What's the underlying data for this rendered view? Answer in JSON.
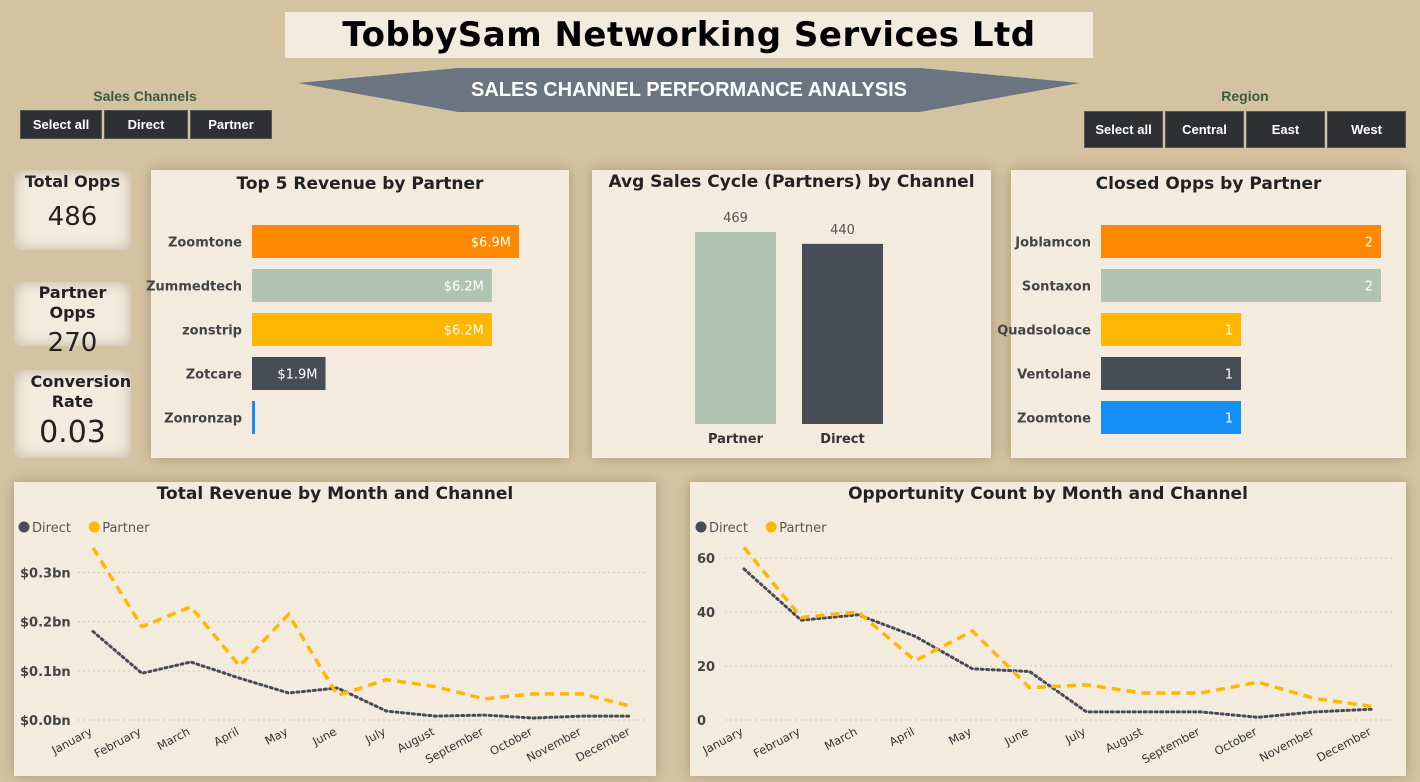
{
  "header": {
    "title": "TobbySam Networking Services Ltd",
    "subtitle": "SALES CHANNEL PERFORMANCE ANALYSIS"
  },
  "slicers": {
    "channels": {
      "title": "Sales Channels",
      "buttons": [
        "Select all",
        "Direct",
        "Partner"
      ]
    },
    "region": {
      "title": "Region",
      "buttons": [
        "Select all",
        "Central",
        "East",
        "West"
      ]
    }
  },
  "kpis": [
    {
      "label": "Total Opps",
      "value": "486"
    },
    {
      "label": "Partner Opps",
      "value": "270"
    },
    {
      "label": "Conversion Rate",
      "value": "0.03"
    }
  ],
  "colors": {
    "orange": "#ff8800",
    "sage": "#b0c4b1",
    "yellow": "#ffb703",
    "dark": "#474c56",
    "blue": "#168ef7"
  },
  "chart_data": [
    {
      "type": "bar",
      "orientation": "horizontal",
      "title": "Top 5 Revenue by Partner",
      "categories": [
        "Zoomtone",
        "Zummedtech",
        "zonstrip",
        "Zotcare",
        "Zonronzap"
      ],
      "values": [
        6.9,
        6.2,
        6.2,
        1.9,
        0.05
      ],
      "labels": [
        "$6.9M",
        "$6.2M",
        "$6.2M",
        "$1.9M",
        ""
      ],
      "bar_colors": [
        "#ff8800",
        "#b0c4b1",
        "#ffb703",
        "#474c56",
        "#168ef7"
      ],
      "unit": "$M"
    },
    {
      "type": "bar",
      "orientation": "vertical",
      "title": "Avg Sales Cycle (Partners) by Channel",
      "categories": [
        "Partner",
        "Direct"
      ],
      "values": [
        469,
        440
      ],
      "labels": [
        "469",
        "440"
      ],
      "bar_colors": [
        "#b0c4b1",
        "#474c56"
      ]
    },
    {
      "type": "bar",
      "orientation": "horizontal",
      "title": "Closed Opps by Partner",
      "categories": [
        "Joblamcon",
        "Sontaxon",
        "Quadsoloace",
        "Ventolane",
        "Zoomtone"
      ],
      "values": [
        2,
        2,
        1,
        1,
        1
      ],
      "labels": [
        "2",
        "2",
        "1",
        "1",
        "1"
      ],
      "bar_colors": [
        "#ff8800",
        "#b0c4b1",
        "#ffb703",
        "#474c56",
        "#168ef7"
      ]
    },
    {
      "type": "line",
      "title": "Total Revenue by Month and Channel",
      "x": [
        "January",
        "February",
        "March",
        "April",
        "May",
        "June",
        "July",
        "August",
        "September",
        "October",
        "November",
        "December"
      ],
      "series": [
        {
          "name": "Direct",
          "color": "#474c56",
          "values": [
            0.18,
            0.095,
            0.118,
            0.085,
            0.055,
            0.065,
            0.018,
            0.008,
            0.01,
            0.004,
            0.008,
            0.008
          ]
        },
        {
          "name": "Partner",
          "color": "#ffb703",
          "values": [
            0.35,
            0.19,
            0.23,
            0.11,
            0.215,
            0.05,
            0.082,
            0.068,
            0.043,
            0.053,
            0.053,
            0.028
          ]
        }
      ],
      "yticks": [
        0,
        0.1,
        0.2,
        0.3
      ],
      "ytick_labels": [
        "$0.0bn",
        "$0.1bn",
        "$0.2bn",
        "$0.3bn"
      ],
      "ylim": [
        0,
        0.36
      ],
      "legend": "top-left"
    },
    {
      "type": "line",
      "title": "Opportunity Count by Month and Channel",
      "x": [
        "January",
        "February",
        "March",
        "April",
        "May",
        "June",
        "July",
        "August",
        "September",
        "October",
        "November",
        "December"
      ],
      "series": [
        {
          "name": "Direct",
          "color": "#474c56",
          "values": [
            56,
            37,
            39,
            31,
            19,
            18,
            3,
            3,
            3,
            1,
            3,
            4
          ]
        },
        {
          "name": "Partner",
          "color": "#ffb703",
          "values": [
            64,
            38,
            40,
            22,
            33,
            12,
            13,
            10,
            10,
            14,
            8,
            5
          ]
        }
      ],
      "yticks": [
        0,
        20,
        40,
        60
      ],
      "ytick_labels": [
        "0",
        "20",
        "40",
        "60"
      ],
      "ylim": [
        0,
        66
      ],
      "legend": "top-left"
    }
  ]
}
